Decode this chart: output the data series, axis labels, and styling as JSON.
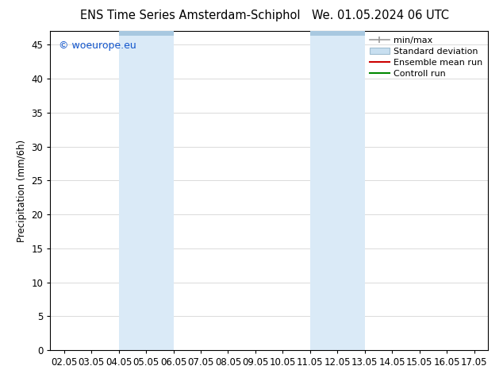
{
  "title_left": "ENS Time Series Amsterdam-Schiphol",
  "title_right": "We. 01.05.2024 06 UTC",
  "ylabel": "Precipitation (mm/6h)",
  "xlim": [
    1.5,
    17.5
  ],
  "ylim": [
    0,
    47
  ],
  "yticks": [
    0,
    5,
    10,
    15,
    20,
    25,
    30,
    35,
    40,
    45
  ],
  "xtick_labels": [
    "02.05",
    "03.05",
    "04.05",
    "05.05",
    "06.05",
    "07.05",
    "08.05",
    "09.05",
    "10.05",
    "11.05",
    "12.05",
    "13.05",
    "14.05",
    "15.05",
    "16.05",
    "17.05"
  ],
  "xtick_positions": [
    2,
    3,
    4,
    5,
    6,
    7,
    8,
    9,
    10,
    11,
    12,
    13,
    14,
    15,
    16,
    17
  ],
  "shaded_regions": [
    {
      "xmin": 4.0,
      "xmax": 6.0,
      "color": "#daeaf7"
    },
    {
      "xmin": 11.0,
      "xmax": 13.0,
      "color": "#daeaf7"
    }
  ],
  "top_bar_regions": [
    {
      "xmin": 4.0,
      "xmax": 6.0
    },
    {
      "xmin": 11.0,
      "xmax": 13.0
    }
  ],
  "top_bar_color": "#a8c8e0",
  "watermark": "© woeurope.eu",
  "watermark_color": "#1155cc",
  "background_color": "#ffffff",
  "grid_color": "#cccccc",
  "font_size": 8.5,
  "title_font_size": 10.5,
  "legend_font_size": 8
}
